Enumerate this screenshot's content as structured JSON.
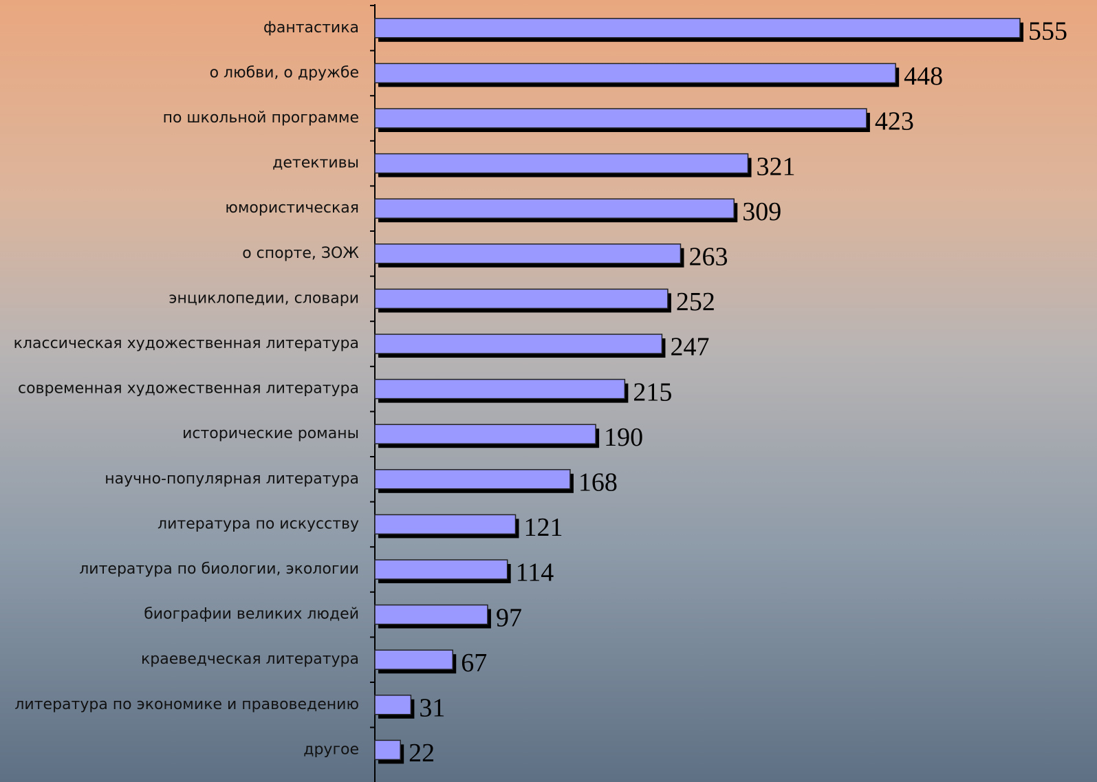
{
  "chart_data": {
    "type": "barh",
    "categories": [
      "фантастика",
      "о любви, о дружбе",
      "по школьной программе",
      "детективы",
      "юмористическая",
      "о спорте, ЗОЖ",
      "энциклопедии, словари",
      "классическая художественная литература",
      "современная художественная литература",
      "исторические романы",
      "научно-популярная литература",
      "литература по искусству",
      "литература по биологии, экологии",
      "биографии великих людей",
      "краеведческая литература",
      "литература по экономике и правоведению",
      "другое"
    ],
    "values": [
      555,
      448,
      423,
      321,
      309,
      263,
      252,
      247,
      215,
      190,
      168,
      121,
      114,
      97,
      67,
      31,
      22
    ],
    "color": "#9999ff"
  }
}
